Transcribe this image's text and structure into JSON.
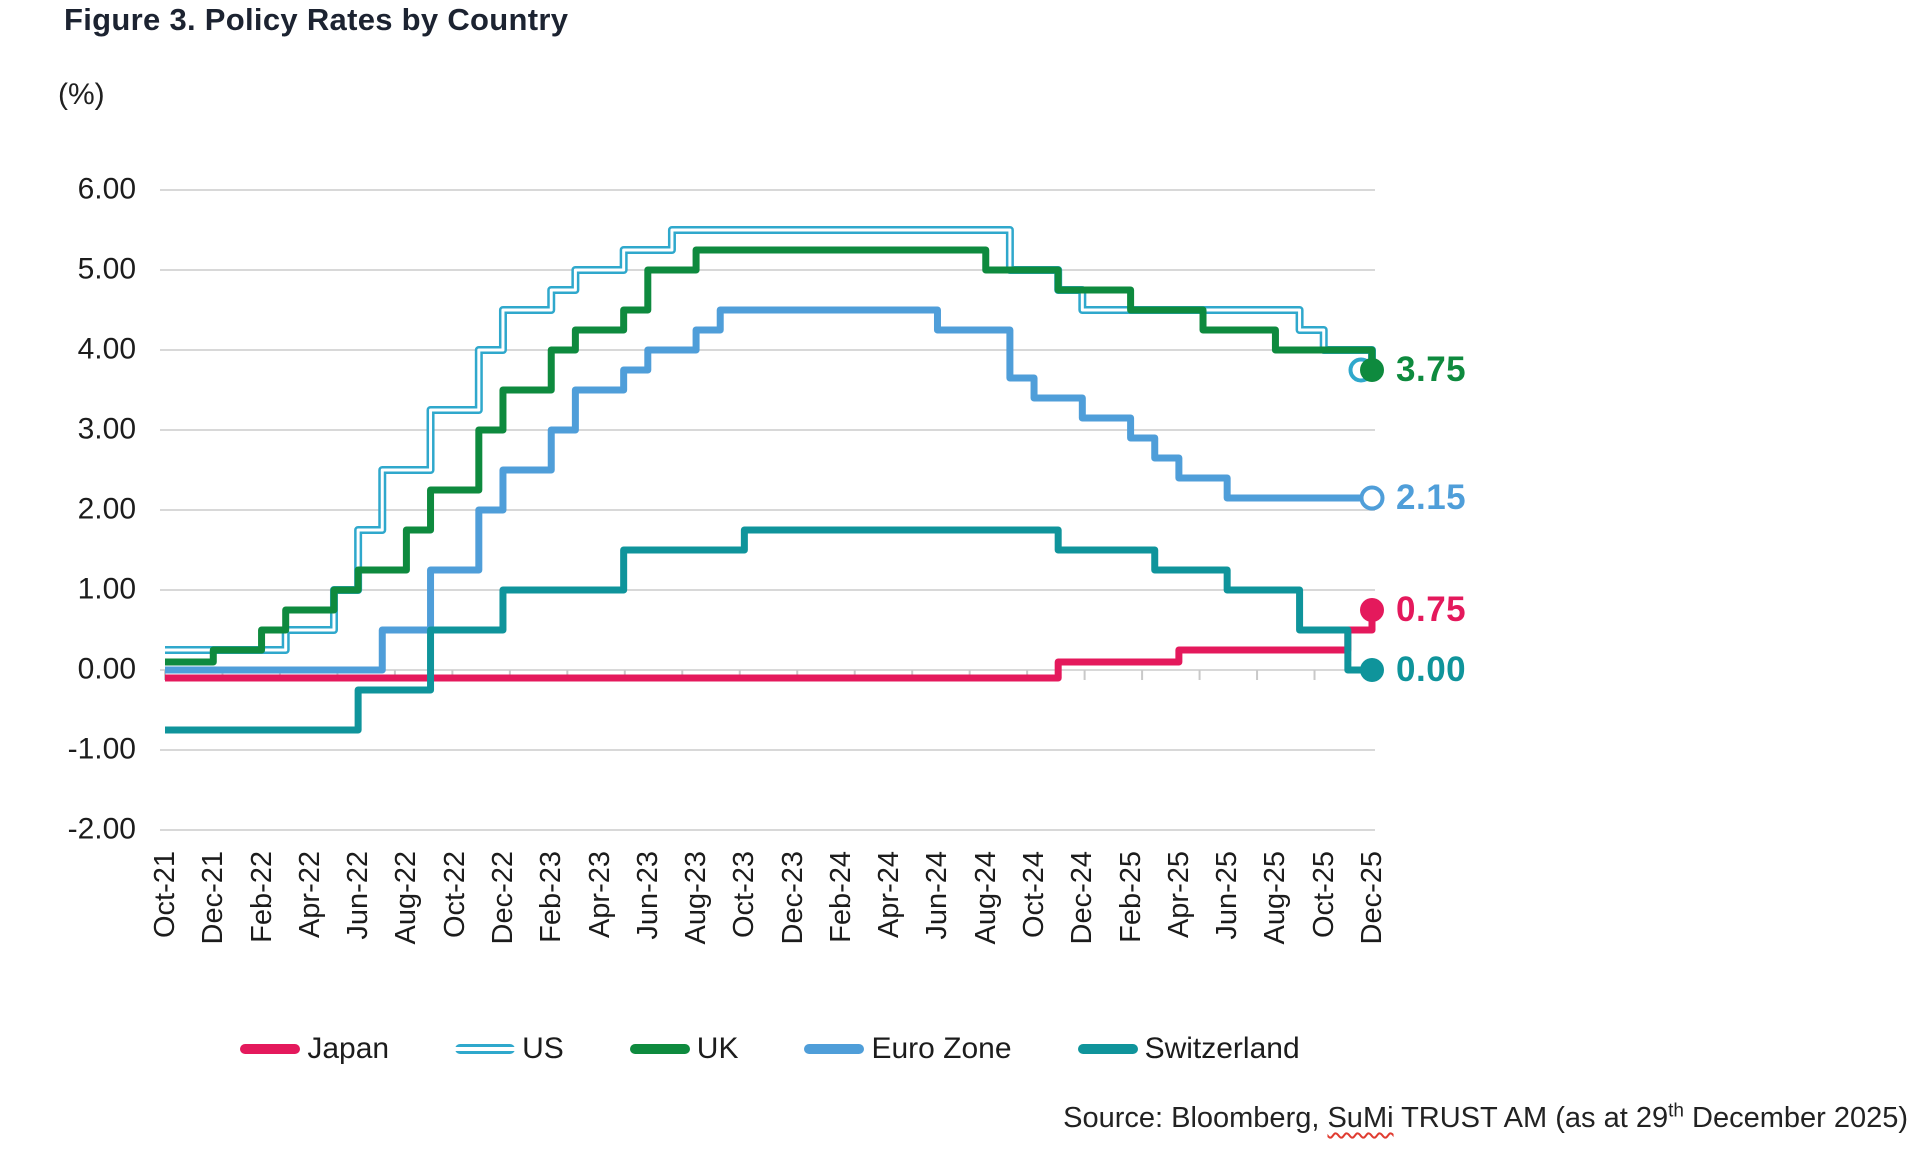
{
  "title": "Figure 3. Policy Rates by Country",
  "y_axis": {
    "unit_label": "(%)",
    "min": -2,
    "max": 6,
    "step": 1,
    "ticks": [
      {
        "label": "6.00",
        "value": 6
      },
      {
        "label": "5.00",
        "value": 5
      },
      {
        "label": "4.00",
        "value": 4
      },
      {
        "label": "3.00",
        "value": 3
      },
      {
        "label": "2.00",
        "value": 2
      },
      {
        "label": "1.00",
        "value": 1
      },
      {
        "label": "0.00",
        "value": 0
      },
      {
        "label": "-1.00",
        "value": -1
      },
      {
        "label": "-2.00",
        "value": -2
      }
    ]
  },
  "x_axis": {
    "tick_labels": [
      "Oct-21",
      "Dec-21",
      "Feb-22",
      "Apr-22",
      "Jun-22",
      "Aug-22",
      "Oct-22",
      "Dec-22",
      "Feb-23",
      "Apr-23",
      "Jun-23",
      "Aug-23",
      "Oct-23",
      "Dec-23",
      "Feb-24",
      "Apr-24",
      "Jun-24",
      "Aug-24",
      "Oct-24",
      "Dec-24",
      "Feb-25",
      "Apr-25",
      "Jun-25",
      "Aug-25",
      "Oct-25",
      "Dec-25"
    ]
  },
  "legend_order": [
    "Japan",
    "US",
    "UK",
    "Euro Zone",
    "Switzerland"
  ],
  "source": {
    "prefix": "Source: Bloomberg, ",
    "sumi": "SuMi",
    "middle": "  TRUST AM  (as at 29",
    "sup": "th",
    "suffix": " December 2025)"
  },
  "colors": {
    "japan": "#E4195C",
    "us": "#2FA8CC",
    "uk": "#0E8A3E",
    "euro_zone": "#4F9ED9",
    "switzerland": "#0F949B",
    "gridline": "#D8D8D8",
    "axis_text": "#1c1c1c",
    "title_text": "#1c2331"
  },
  "chart_data": {
    "type": "line",
    "step": true,
    "grid": "horizontal-only",
    "legend_position": "bottom",
    "ylim": [
      -2,
      6
    ],
    "months": [
      "Oct-21",
      "Nov-21",
      "Dec-21",
      "Jan-22",
      "Feb-22",
      "Mar-22",
      "Apr-22",
      "May-22",
      "Jun-22",
      "Jul-22",
      "Aug-22",
      "Sep-22",
      "Oct-22",
      "Nov-22",
      "Dec-22",
      "Jan-23",
      "Feb-23",
      "Mar-23",
      "Apr-23",
      "May-23",
      "Jun-23",
      "Jul-23",
      "Aug-23",
      "Sep-23",
      "Oct-23",
      "Nov-23",
      "Dec-23",
      "Jan-24",
      "Feb-24",
      "Mar-24",
      "Apr-24",
      "May-24",
      "Jun-24",
      "Jul-24",
      "Aug-24",
      "Sep-24",
      "Oct-24",
      "Nov-24",
      "Dec-24",
      "Jan-25",
      "Feb-25",
      "Mar-25",
      "Apr-25",
      "May-25",
      "Jun-25",
      "Jul-25",
      "Aug-25",
      "Sep-25",
      "Oct-25",
      "Nov-25",
      "Dec-25"
    ],
    "series": [
      {
        "name": "Japan",
        "color": "#E4195C",
        "line_style": "solid",
        "end_label": "0.75",
        "end_marker": "filled",
        "marker_offset_x": 0,
        "changes": [
          [
            "Oct-21",
            -0.1
          ],
          [
            "Nov-24",
            0.1
          ],
          [
            "Apr-25",
            0.25
          ],
          [
            "Nov-25",
            0.5
          ],
          [
            "Dec-25",
            0.75
          ]
        ]
      },
      {
        "name": "US",
        "color": "#2FA8CC",
        "line_style": "double",
        "end_label": "3.75",
        "end_marker": "hollow",
        "marker_offset_x": -11,
        "changes": [
          [
            "Oct-21",
            0.25
          ],
          [
            "Mar-22",
            0.5
          ],
          [
            "May-22",
            1.0
          ],
          [
            "Jun-22",
            1.75
          ],
          [
            "Jul-22",
            2.5
          ],
          [
            "Sep-22",
            3.25
          ],
          [
            "Nov-22",
            4.0
          ],
          [
            "Dec-22",
            4.5
          ],
          [
            "Feb-23",
            4.75
          ],
          [
            "Mar-23",
            5.0
          ],
          [
            "May-23",
            5.25
          ],
          [
            "Jul-23",
            5.5
          ],
          [
            "Sep-24",
            5.0
          ],
          [
            "Nov-24",
            4.75
          ],
          [
            "Dec-24",
            4.5
          ],
          [
            "Sep-25",
            4.25
          ],
          [
            "Oct-25",
            4.0
          ],
          [
            "Dec-25",
            3.75
          ]
        ]
      },
      {
        "name": "UK",
        "color": "#0E8A3E",
        "line_style": "solid",
        "end_label": "3.75",
        "end_marker": "filled",
        "marker_offset_x": 0,
        "changes": [
          [
            "Oct-21",
            0.1
          ],
          [
            "Dec-21",
            0.25
          ],
          [
            "Feb-22",
            0.5
          ],
          [
            "Mar-22",
            0.75
          ],
          [
            "May-22",
            1.0
          ],
          [
            "Jun-22",
            1.25
          ],
          [
            "Aug-22",
            1.75
          ],
          [
            "Sep-22",
            2.25
          ],
          [
            "Nov-22",
            3.0
          ],
          [
            "Dec-22",
            3.5
          ],
          [
            "Feb-23",
            4.0
          ],
          [
            "Mar-23",
            4.25
          ],
          [
            "May-23",
            4.5
          ],
          [
            "Jun-23",
            5.0
          ],
          [
            "Aug-23",
            5.25
          ],
          [
            "Aug-24",
            5.0
          ],
          [
            "Nov-24",
            4.75
          ],
          [
            "Feb-25",
            4.5
          ],
          [
            "May-25",
            4.25
          ],
          [
            "Aug-25",
            4.0
          ],
          [
            "Dec-25",
            3.75
          ]
        ]
      },
      {
        "name": "Euro Zone",
        "color": "#4F9ED9",
        "line_style": "solid",
        "end_label": "2.15",
        "end_marker": "hollow",
        "marker_offset_x": 0,
        "changes": [
          [
            "Oct-21",
            0.0
          ],
          [
            "Jul-22",
            0.5
          ],
          [
            "Sep-22",
            1.25
          ],
          [
            "Nov-22",
            2.0
          ],
          [
            "Dec-22",
            2.5
          ],
          [
            "Feb-23",
            3.0
          ],
          [
            "Mar-23",
            3.5
          ],
          [
            "May-23",
            3.75
          ],
          [
            "Jun-23",
            4.0
          ],
          [
            "Aug-23",
            4.25
          ],
          [
            "Sep-23",
            4.5
          ],
          [
            "Jun-24",
            4.25
          ],
          [
            "Sep-24",
            3.65
          ],
          [
            "Oct-24",
            3.4
          ],
          [
            "Dec-24",
            3.15
          ],
          [
            "Feb-25",
            2.9
          ],
          [
            "Mar-25",
            2.65
          ],
          [
            "Apr-25",
            2.4
          ],
          [
            "Jun-25",
            2.15
          ]
        ]
      },
      {
        "name": "Switzerland",
        "color": "#0F949B",
        "line_style": "solid",
        "end_label": "0.00",
        "end_marker": "filled",
        "marker_offset_x": 0,
        "changes": [
          [
            "Oct-21",
            -0.75
          ],
          [
            "Jun-22",
            -0.25
          ],
          [
            "Sep-22",
            0.5
          ],
          [
            "Dec-22",
            1.0
          ],
          [
            "May-23",
            1.5
          ],
          [
            "Oct-23",
            1.75
          ],
          [
            "Nov-24",
            1.5
          ],
          [
            "Mar-25",
            1.25
          ],
          [
            "Jun-25",
            1.0
          ],
          [
            "Sep-25",
            0.5
          ],
          [
            "Nov-25",
            0.0
          ]
        ]
      }
    ]
  }
}
